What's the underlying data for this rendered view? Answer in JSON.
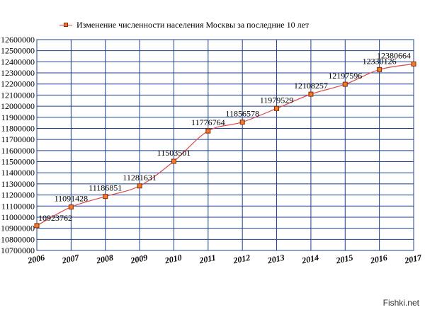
{
  "chart_data": {
    "type": "line",
    "title": "",
    "legend": "Изменение численности населения Москвы за последние 10 лет",
    "legend_position": "top-left",
    "grid": true,
    "xlabel": "",
    "ylabel": "",
    "x": [
      "2006",
      "2007",
      "2008",
      "2009",
      "2010",
      "2011",
      "2012",
      "2013",
      "2014",
      "2015",
      "2016",
      "2017"
    ],
    "series": [
      {
        "name": "Изменение численности населения Москвы за последние 10 лет",
        "values": [
          10923762,
          11091428,
          11186851,
          11281631,
          11503501,
          11776764,
          11856578,
          11979529,
          12108257,
          12197596,
          12330126,
          12380664
        ],
        "labels": [
          "10923762",
          "11091428",
          "11186851",
          "11281631",
          "11503501",
          "11776764",
          "11856578",
          "11979529",
          "12108257",
          "12197596",
          "12330126",
          "12380664"
        ]
      }
    ],
    "ylim": [
      10700000,
      12600000
    ],
    "yticks": [
      "12600000",
      "12500000",
      "12400000",
      "12300000",
      "12200000",
      "12100000",
      "12000000",
      "11900000",
      "11800000",
      "11700000",
      "11600000",
      "11500000",
      "11400000",
      "11300000",
      "11200000",
      "11100000",
      "11000000",
      "10900000",
      "10800000",
      "10700000"
    ],
    "colors": {
      "line": "#d94a4a",
      "marker_fill": "#f07b2c",
      "marker_edge": "#8a2a00",
      "grid": "#1f3f8f"
    }
  },
  "watermark": "Fishki.net"
}
